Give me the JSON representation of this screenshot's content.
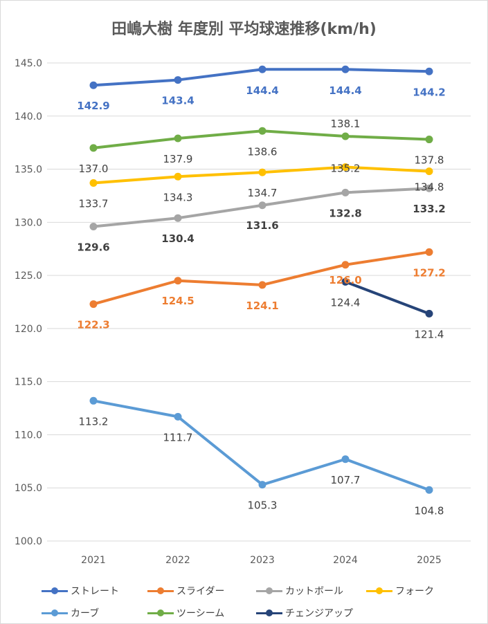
{
  "chart_data": {
    "type": "line",
    "title": "田嶋大樹 年度別 平均球速推移(km/h)",
    "categories": [
      "2021",
      "2022",
      "2023",
      "2024",
      "2025"
    ],
    "ylim": [
      100,
      145
    ],
    "y_ticks": [
      "100.0",
      "105.0",
      "110.0",
      "115.0",
      "120.0",
      "125.0",
      "130.0",
      "135.0",
      "140.0",
      "145.0"
    ],
    "grid": true,
    "legend_position": "bottom",
    "series": [
      {
        "name": "ストレート",
        "color": "#4472c4",
        "values": [
          142.9,
          143.4,
          144.4,
          144.4,
          144.2
        ],
        "labels": [
          "142.9",
          "143.4",
          "144.4",
          "144.4",
          "144.2"
        ],
        "label_color": "#4472c4",
        "bold": true
      },
      {
        "name": "スライダー",
        "color": "#ed7d31",
        "values": [
          122.3,
          124.5,
          124.1,
          126.0,
          127.2
        ],
        "labels": [
          "122.3",
          "124.5",
          "124.1",
          "126.0",
          "127.2"
        ],
        "label_color": "#ed7d31",
        "bold": true
      },
      {
        "name": "カットボール",
        "color": "#a5a5a5",
        "values": [
          129.6,
          130.4,
          131.6,
          132.8,
          133.2
        ],
        "labels": [
          "129.6",
          "130.4",
          "131.6",
          "132.8",
          "133.2"
        ],
        "label_color": "#404040",
        "bold": true
      },
      {
        "name": "フォーク",
        "color": "#ffc000",
        "values": [
          133.7,
          134.3,
          134.7,
          135.2,
          134.8
        ],
        "labels": [
          "133.7",
          "134.3",
          "134.7",
          "135.2",
          "134.8"
        ],
        "label_color": "#404040",
        "bold": false
      },
      {
        "name": "カーブ",
        "color": "#5b9bd5",
        "values": [
          113.2,
          111.7,
          105.3,
          107.7,
          104.8
        ],
        "labels": [
          "113.2",
          "111.7",
          "105.3",
          "107.7",
          "104.8"
        ],
        "label_color": "#404040",
        "bold": false
      },
      {
        "name": "ツーシーム",
        "color": "#70ad47",
        "values": [
          137.0,
          137.9,
          138.6,
          138.1,
          137.8
        ],
        "labels": [
          "137.0",
          "137.9",
          "138.6",
          "138.1",
          "137.8"
        ],
        "label_color": "#404040",
        "bold": false
      },
      {
        "name": "チェンジアップ",
        "color": "#264478",
        "values": [
          null,
          null,
          null,
          124.4,
          121.4
        ],
        "labels": [
          null,
          null,
          null,
          "124.4",
          "121.4"
        ],
        "label_color": "#404040",
        "bold": false
      }
    ]
  }
}
